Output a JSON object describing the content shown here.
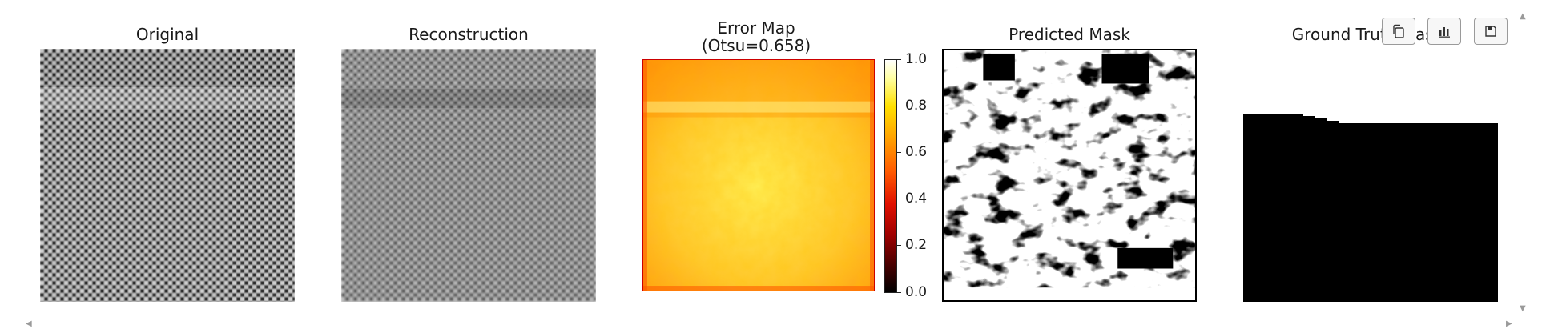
{
  "panels": [
    {
      "title": "Original"
    },
    {
      "title": "Reconstruction"
    },
    {
      "title": "Error Map",
      "subtitle": "(Otsu=0.658)"
    },
    {
      "title": "Predicted Mask"
    },
    {
      "title": "Ground Truth Mask"
    }
  ],
  "colorbar": {
    "ticks": [
      "1.0",
      "0.8",
      "0.6",
      "0.4",
      "0.2",
      "0.0"
    ],
    "range": [
      0.0,
      1.0
    ],
    "colormap": "hot"
  },
  "toolbar": {
    "icons": [
      "copy-icon",
      "chart-icon",
      "save-icon"
    ]
  },
  "colors": {
    "error_low": "#ff9900",
    "error_high": "#ffff66",
    "mask_fg": "#000000",
    "mask_bg": "#ffffff"
  }
}
